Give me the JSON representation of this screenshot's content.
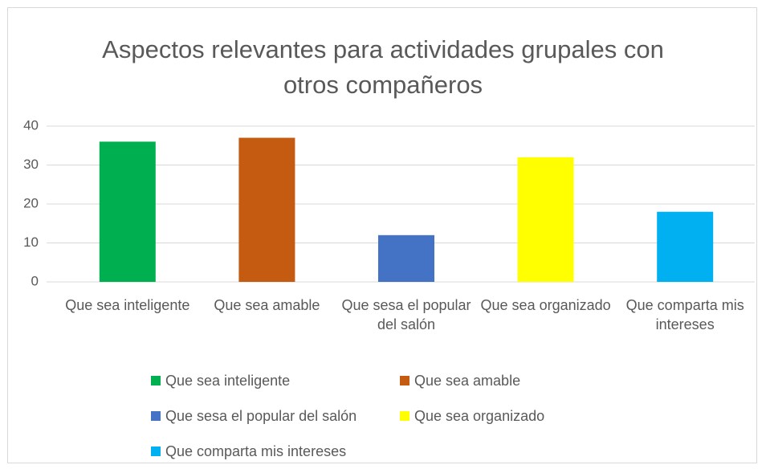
{
  "chart_data": {
    "type": "bar",
    "title": "Aspectos relevantes para actividades grupales con otros compañeros",
    "categories": [
      "Que sea inteligente",
      "Que sea amable",
      "Que sesa el popular del salón",
      "Que sea organizado",
      "Que comparta mis intereses"
    ],
    "values": [
      36,
      37,
      12,
      32,
      18
    ],
    "colors": [
      "#00b050",
      "#c55a11",
      "#4472c4",
      "#ffff00",
      "#00b0f0"
    ],
    "ylim": [
      0,
      40
    ],
    "yticks": [
      0,
      10,
      20,
      30,
      40
    ],
    "grid": true,
    "legend": "bottom"
  }
}
